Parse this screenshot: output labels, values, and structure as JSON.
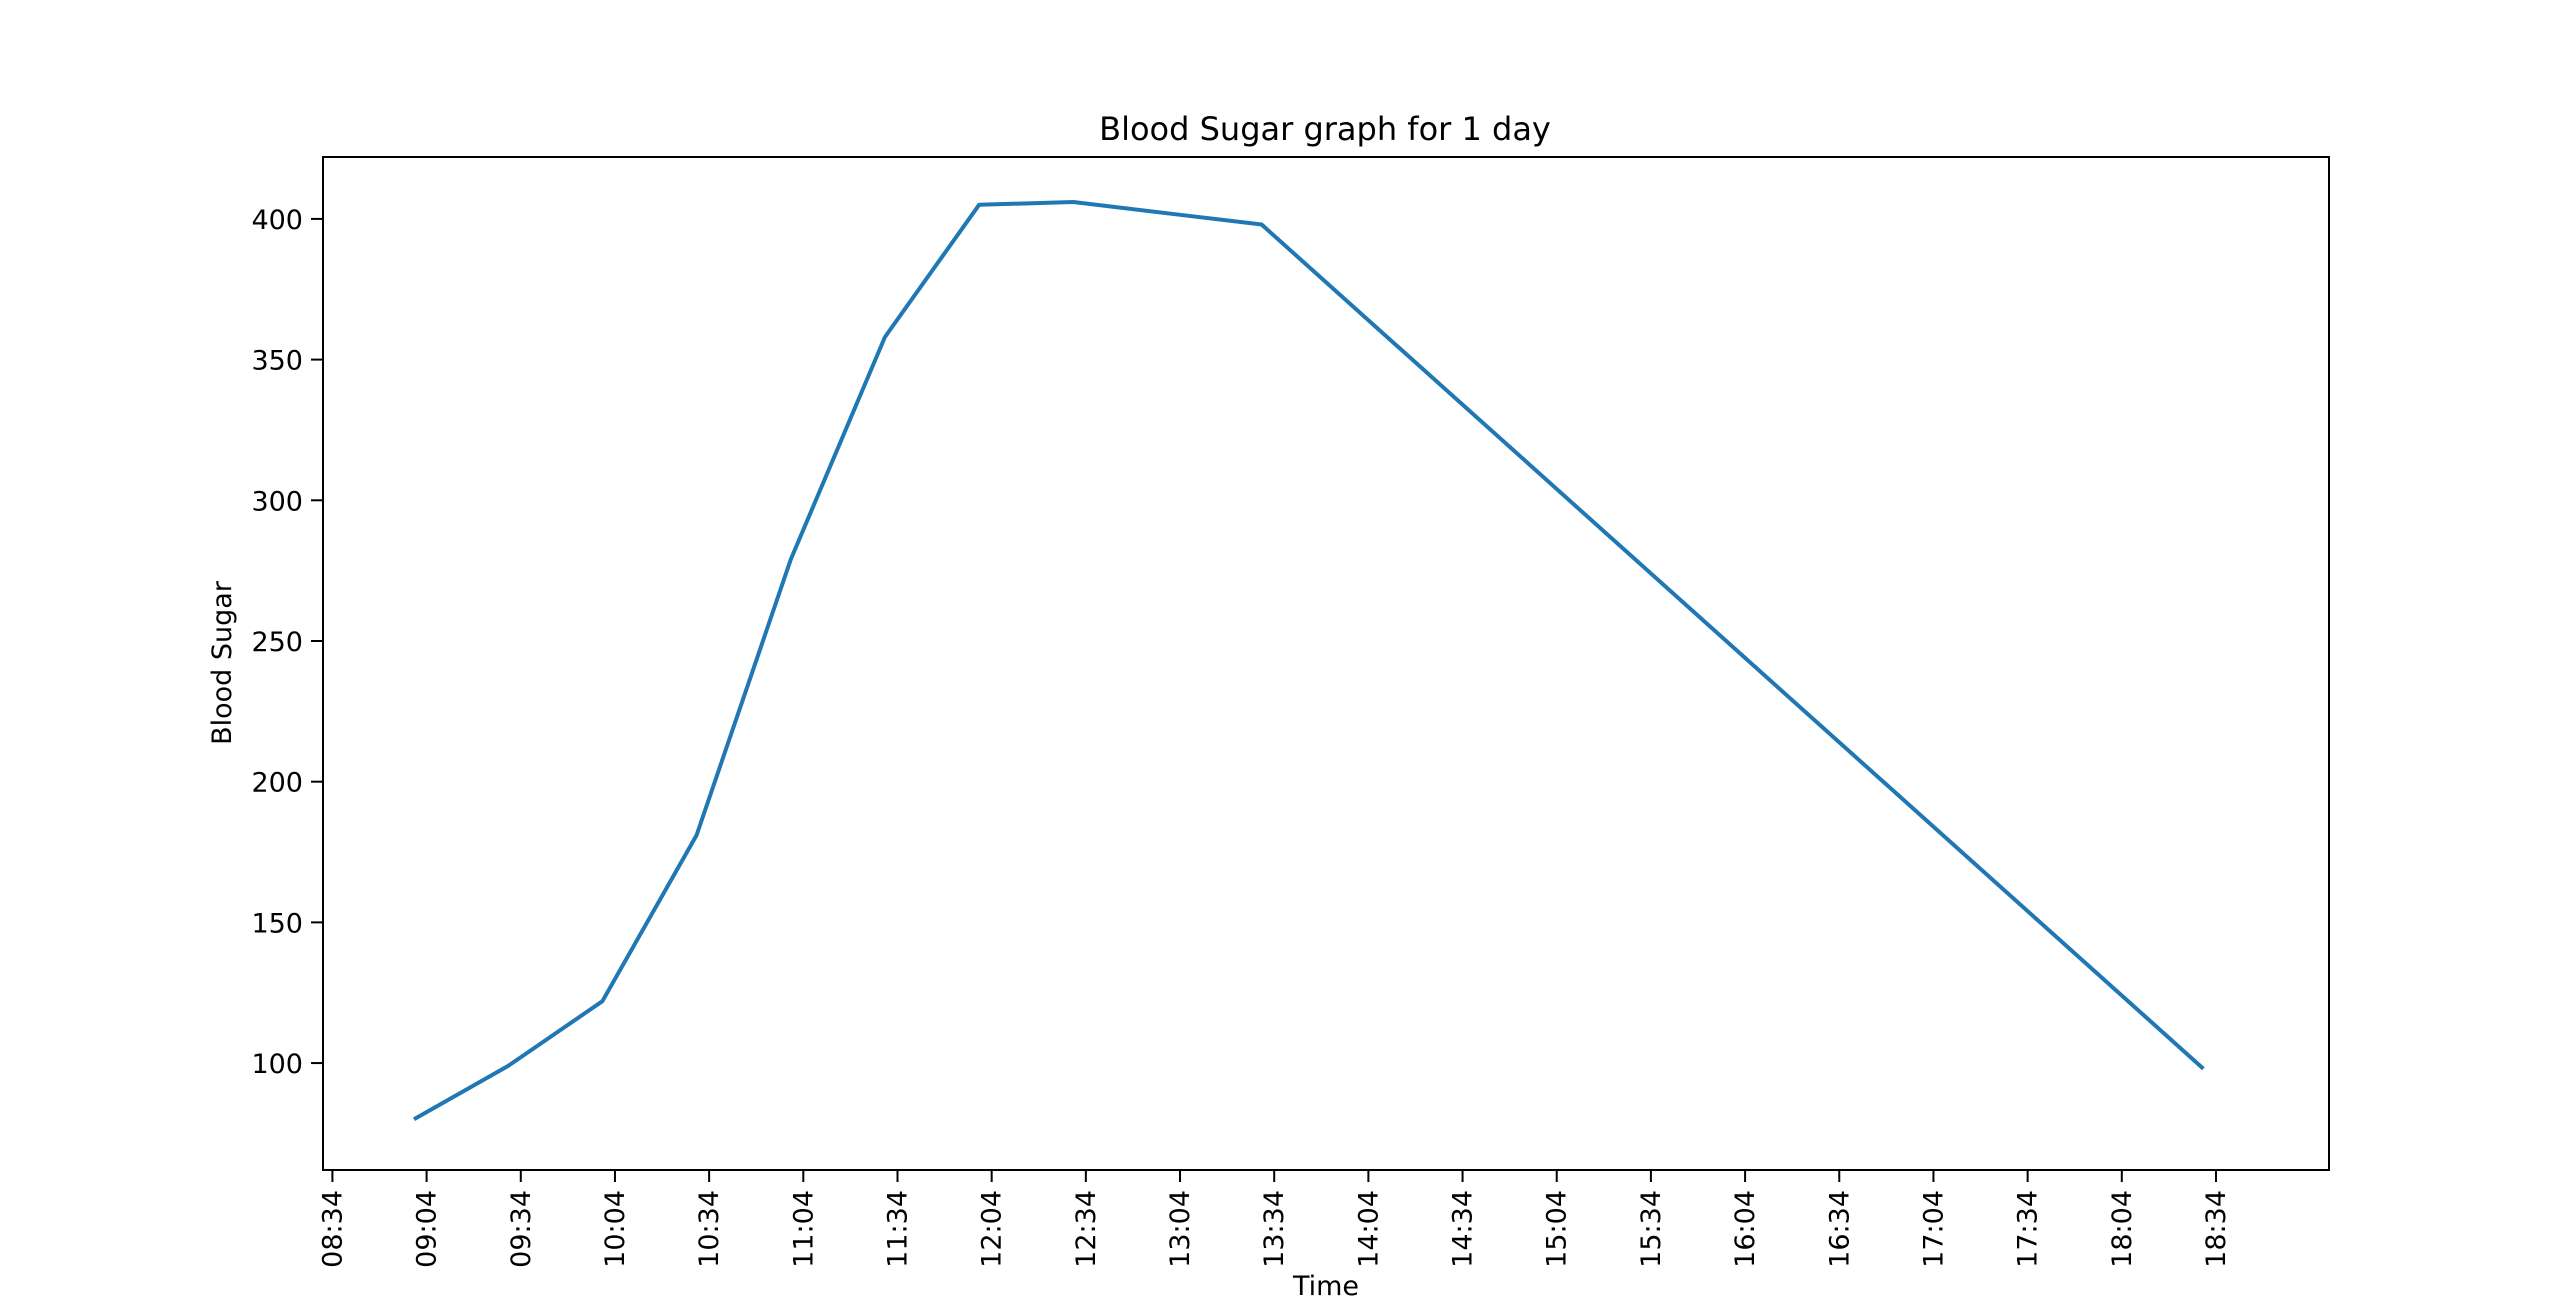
{
  "chart_data": {
    "type": "line",
    "title": "Blood Sugar graph for 1 day",
    "xlabel": "Time",
    "ylabel": "Blood Sugar",
    "x_tick_labels": [
      "08:34",
      "09:04",
      "09:34",
      "10:04",
      "10:34",
      "11:04",
      "11:34",
      "12:04",
      "12:34",
      "13:04",
      "13:34",
      "14:04",
      "14:34",
      "15:04",
      "15:34",
      "16:04",
      "16:34",
      "17:04",
      "17:34",
      "18:04",
      "18:34"
    ],
    "y_ticks": [
      100,
      150,
      200,
      250,
      300,
      350,
      400
    ],
    "xlim": [
      "08:31",
      "19:10"
    ],
    "ylim": [
      62,
      422
    ],
    "grid": false,
    "legend": false,
    "series": [
      {
        "color": "#1f77b4",
        "points": [
          {
            "x": "09:00",
            "y": 80
          },
          {
            "x": "09:30",
            "y": 99
          },
          {
            "x": "10:00",
            "y": 122
          },
          {
            "x": "10:30",
            "y": 181
          },
          {
            "x": "11:00",
            "y": 279
          },
          {
            "x": "11:30",
            "y": 358
          },
          {
            "x": "12:00",
            "y": 405
          },
          {
            "x": "12:30",
            "y": 406
          },
          {
            "x": "13:00",
            "y": 402
          },
          {
            "x": "13:30",
            "y": 398
          },
          {
            "x": "18:30",
            "y": 98
          }
        ]
      }
    ]
  }
}
